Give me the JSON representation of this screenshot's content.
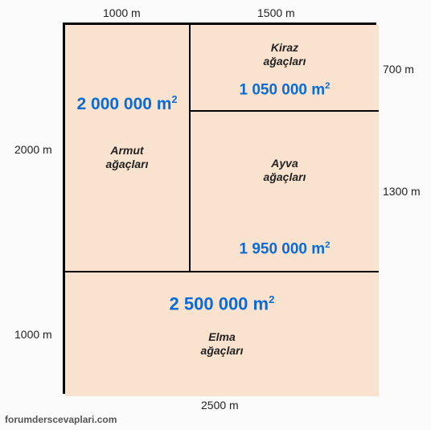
{
  "colors": {
    "region_fill": "#f9e3cf",
    "border": "#000000",
    "area_text": "#0b6bd6",
    "label_text": "#222222",
    "background": "#fbfbfb"
  },
  "diagram": {
    "outer_width_m": 2500,
    "outer_height_m": 3000,
    "regions": {
      "armut": {
        "name": "Armut\nağaçları",
        "area": "2 000 000 m²",
        "w_m": 1000,
        "h_m": 2000
      },
      "kiraz": {
        "name": "Kiraz\nağaçları",
        "area": "1 050 000 m²",
        "w_m": 1500,
        "h_m": 700
      },
      "ayva": {
        "name": "Ayva\nağaçları",
        "area": "1 950 000 m²",
        "w_m": 1500,
        "h_m": 1300
      },
      "elma": {
        "name": "Elma\nağaçları",
        "area": "2 500 000 m²",
        "w_m": 2500,
        "h_m": 1000
      }
    }
  },
  "dimensions": {
    "top_left": "1000 m",
    "top_right": "1500 m",
    "right_upper": "700 m",
    "right_lower": "1300 m",
    "left_upper": "2000 m",
    "left_lower": "1000 m",
    "bottom": "2500 m"
  },
  "fontsizes": {
    "name_pt": 14,
    "dim_pt": 14,
    "area_big_pt": 21,
    "area_med_pt": 18
  },
  "watermark": "forumderscevaplari.com"
}
